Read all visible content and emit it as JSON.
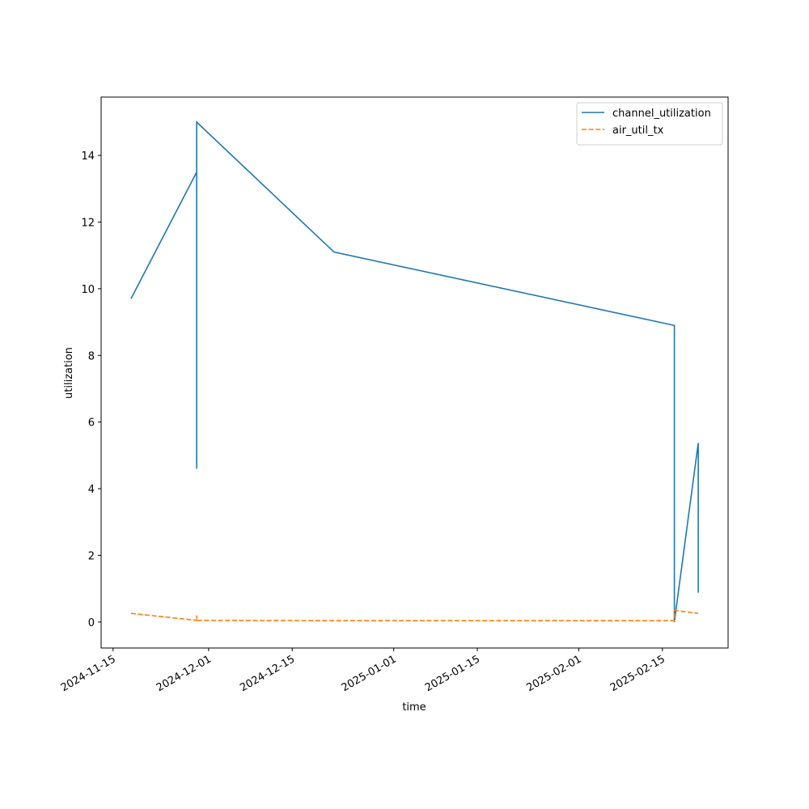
{
  "chart_data": {
    "type": "line",
    "x_label": "time",
    "y_label": "utilization",
    "x": [
      "2024-11-18",
      "2024-11-29",
      "2024-11-29",
      "2024-11-29",
      "2024-12-22",
      "2025-02-17",
      "2025-02-17",
      "2025-02-21",
      "2025-02-21"
    ],
    "series": [
      {
        "name": "channel_utilization",
        "color": "#1f77b4",
        "dash": "solid",
        "values": [
          9.7,
          13.5,
          4.6,
          15.0,
          11.1,
          8.9,
          0.0,
          5.37,
          0.88
        ]
      },
      {
        "name": "air_util_tx",
        "color": "#ff7f0e",
        "dash": "dashed",
        "values": [
          0.26,
          0.05,
          0.2,
          0.05,
          0.04,
          0.04,
          0.35,
          0.26,
          0.26
        ]
      }
    ],
    "xlim": [
      "2024-11-13",
      "2025-02-26"
    ],
    "xticks": [
      "2024-11-15",
      "2024-12-01",
      "2024-12-15",
      "2025-01-01",
      "2025-01-15",
      "2025-02-01",
      "2025-02-15"
    ],
    "ylim": [
      -0.78,
      15.75
    ],
    "yticks": [
      0,
      2,
      4,
      6,
      8,
      10,
      12,
      14
    ],
    "legend": "upper right",
    "grid": false
  }
}
